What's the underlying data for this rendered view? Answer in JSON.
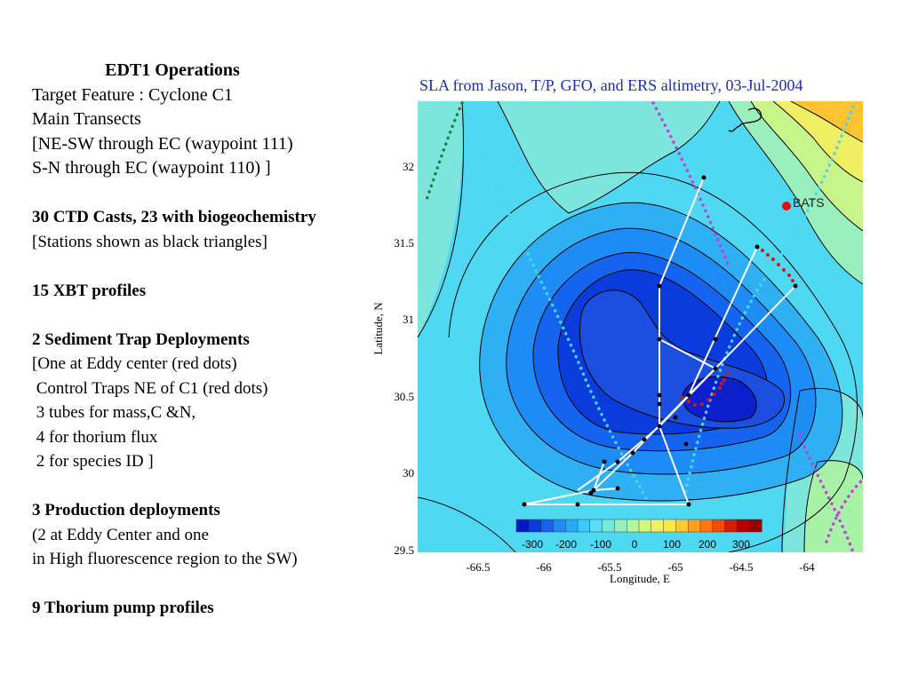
{
  "left_text": {
    "heading": "EDT1 Operations",
    "lines": [
      "Target Feature : Cyclone C1",
      "Main Transects",
      "[NE-SW through EC (waypoint 111)",
      "S-N through EC (waypoint 110) ]"
    ],
    "ctd": "30 CTD Casts, 23 with biogeochemistry",
    "ctd_note": "[Stations shown as black triangles]",
    "xbt": "15 XBT profiles",
    "trap_title": "2 Sediment Trap Deployments",
    "trap_lines": [
      "[One at Eddy center (red dots)",
      " Control Traps NE of C1 (red dots)",
      " 3 tubes for mass,C &N,",
      " 4 for thorium flux",
      " 2 for species ID ]"
    ],
    "prod_title": "3 Production deployments",
    "prod_lines": [
      "(2 at Eddy Center and one",
      "in High fluorescence region to the SW)"
    ],
    "pump": "9 Thorium pump profiles"
  },
  "map": {
    "title": "SLA from Jason, T/P, GFO, and ERS altimetry, 03-Jul-2004",
    "xlabel": "Longitude, E",
    "ylabel": "Latitude, N",
    "x_ticks": [
      "-66.5",
      "-66",
      "-65.5",
      "-65",
      "-64.5",
      "-64"
    ],
    "y_ticks": [
      "32",
      "31.5",
      "31",
      "30.5",
      "30",
      "29.5"
    ],
    "colorbar_ticks": [
      "-300",
      "-200",
      "-100",
      "0",
      "100",
      "200",
      "300"
    ],
    "bats_label": "BATS",
    "colors": {
      "title": "#1a2fb0",
      "track_cyan": "#49d6f0",
      "track_magenta": "#c040d0",
      "track_green": "#208040",
      "transect": "#ffffff",
      "trap_dots": "#d01818",
      "bats_marker": "#e01010"
    },
    "colorbar_colors": [
      "#0019c8",
      "#0a3cdc",
      "#1464f0",
      "#1e8cf5",
      "#28aafa",
      "#3cc8fa",
      "#5adcf5",
      "#78e6dc",
      "#96f0be",
      "#b4f5a0",
      "#d2f582",
      "#f0f064",
      "#ffe646",
      "#ffc832",
      "#ffa01e",
      "#ff7814",
      "#f04b0a",
      "#d21e05",
      "#b40000",
      "#960000"
    ]
  }
}
